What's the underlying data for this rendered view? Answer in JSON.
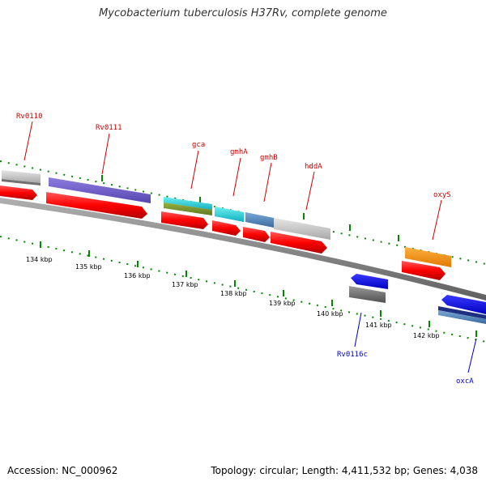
{
  "title": "Mycobacterium tuberculosis H37Rv, complete genome",
  "footer": {
    "accession": "Accession: NC_000962",
    "stats": "Topology: circular; Length: 4,411,532 bp; Genes: 4,038"
  },
  "colors": {
    "label_forward": "#cc0000",
    "label_reverse": "#0000cc",
    "ticks": "#008800",
    "backbone": "#808080",
    "cds": "#ff0000"
  },
  "kbp_labels": [
    "134 kbp",
    "135 kbp",
    "136 kbp",
    "137 kbp",
    "138 kbp",
    "139 kbp",
    "140 kbp",
    "141 kbp",
    "142 kbp"
  ],
  "gene_labels": [
    "Rv0110",
    "Rv0111",
    "gca",
    "gmhA",
    "gmhB",
    "hddA",
    "oxyS",
    "Rv0116c",
    "oxcA"
  ]
}
